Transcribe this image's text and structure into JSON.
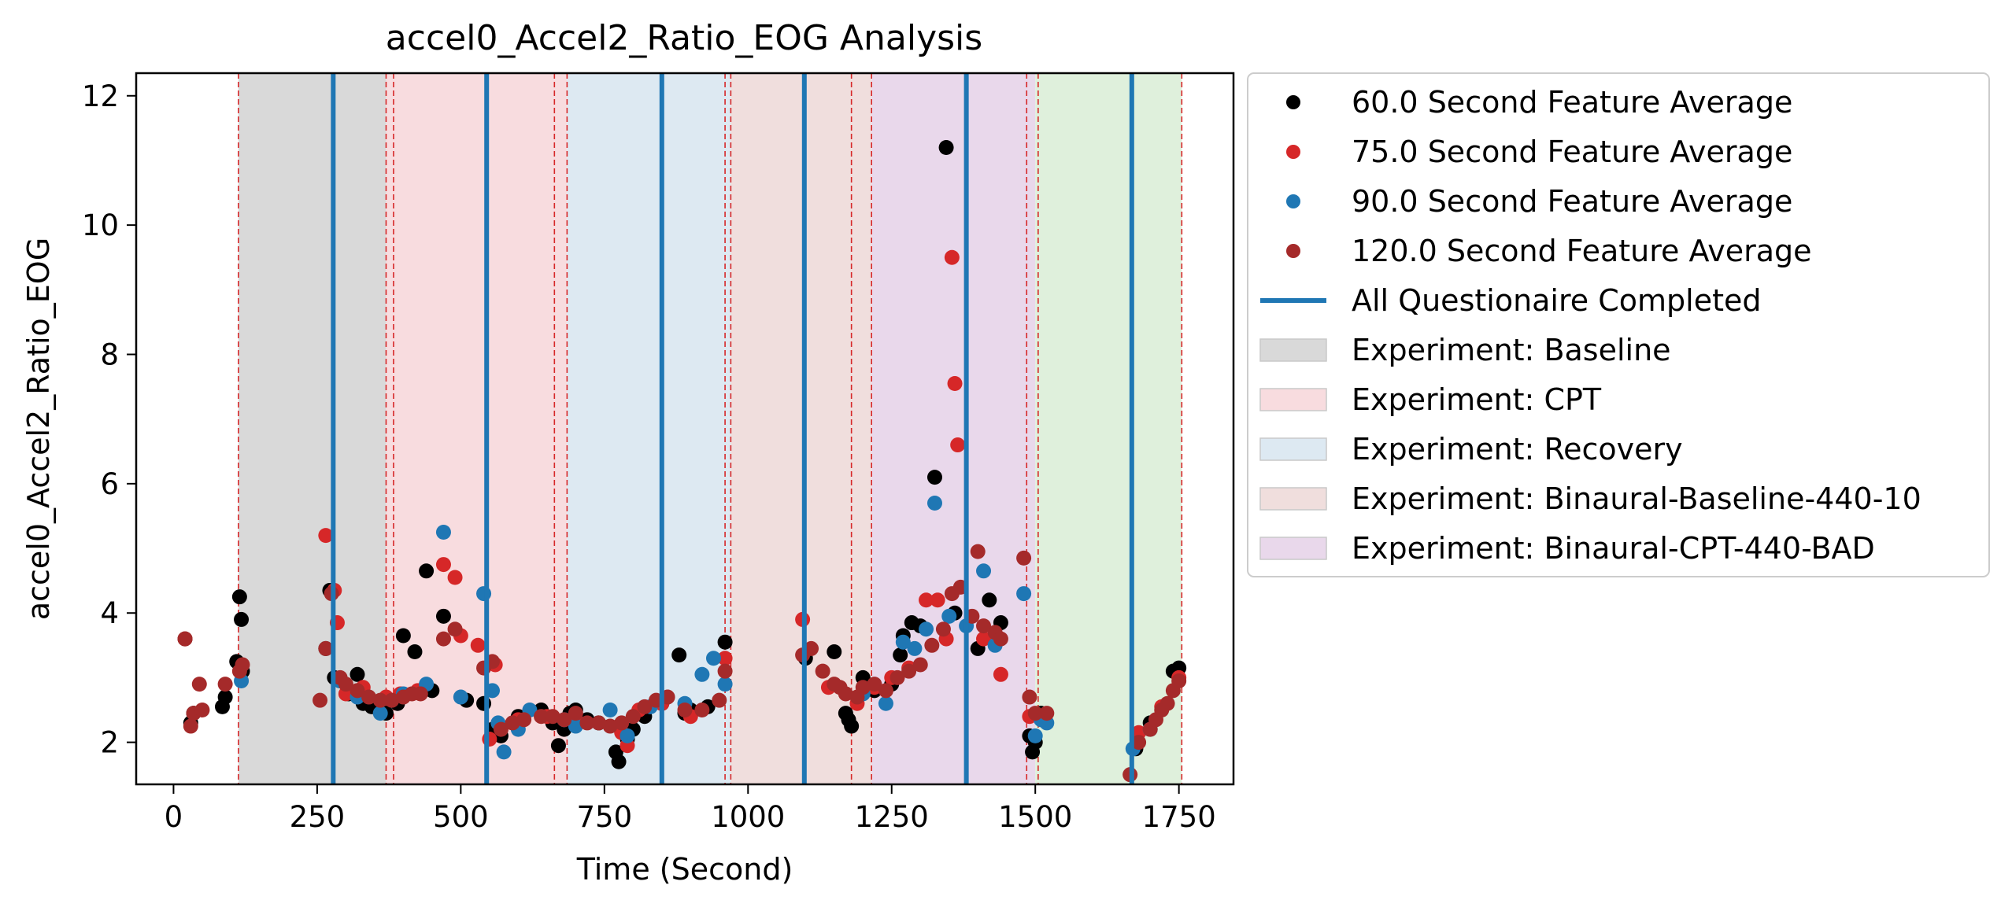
{
  "chart_data": {
    "type": "scatter",
    "title": "accel0_Accel2_Ratio_EOG Analysis",
    "xlabel": "Time (Second)",
    "ylabel": "accel0_Accel2_Ratio_EOG",
    "xlim": [
      -65,
      1845
    ],
    "ylim": [
      1.35,
      12.35
    ],
    "xticks": [
      0,
      250,
      500,
      750,
      1000,
      1250,
      1500,
      1750
    ],
    "yticks": [
      2,
      4,
      6,
      8,
      10,
      12
    ],
    "grid": false,
    "legend_position": "outside-right",
    "phases": [
      {
        "label": "Experiment: Baseline",
        "start": 113,
        "end": 370,
        "color": "#d9d9d9"
      },
      {
        "label": "Experiment: CPT",
        "start": 370,
        "end": 685,
        "color": "#f8dcdf"
      },
      {
        "label": "Experiment: Recovery",
        "start": 685,
        "end": 970,
        "color": "#dde9f2"
      },
      {
        "label": "Experiment: Binaural-Baseline-440-10",
        "start": 970,
        "end": 1215,
        "color": "#f0dedd"
      },
      {
        "label": "Experiment: Binaural-CPT-440-BAD",
        "start": 1215,
        "end": 1500,
        "color": "#e9d8eb"
      },
      {
        "label": "",
        "start": 1500,
        "end": 1755,
        "color": "#dff0dc"
      }
    ],
    "red_dashed_lines": [
      113,
      370,
      383,
      663,
      685,
      960,
      970,
      1180,
      1215,
      1485,
      1505,
      1755
    ],
    "questionnaire_completed": [
      278,
      545,
      850,
      1098,
      1380,
      1668
    ],
    "series": [
      {
        "name": "60.0 Second Feature Average",
        "color": "#000000",
        "points": [
          [
            20,
            3.6
          ],
          [
            30,
            2.3
          ],
          [
            35,
            2.45
          ],
          [
            85,
            2.55
          ],
          [
            90,
            2.7
          ],
          [
            110,
            3.25
          ],
          [
            115,
            4.25
          ],
          [
            118,
            3.9
          ],
          [
            120,
            3.1
          ],
          [
            265,
            3.45
          ],
          [
            272,
            4.35
          ],
          [
            280,
            3.0
          ],
          [
            290,
            2.95
          ],
          [
            305,
            2.75
          ],
          [
            320,
            3.05
          ],
          [
            330,
            2.6
          ],
          [
            345,
            2.55
          ],
          [
            370,
            2.45
          ],
          [
            390,
            2.6
          ],
          [
            400,
            3.65
          ],
          [
            420,
            3.4
          ],
          [
            440,
            4.65
          ],
          [
            450,
            2.8
          ],
          [
            470,
            3.95
          ],
          [
            510,
            2.65
          ],
          [
            540,
            2.6
          ],
          [
            555,
            2.2
          ],
          [
            570,
            2.1
          ],
          [
            600,
            2.4
          ],
          [
            640,
            2.5
          ],
          [
            660,
            2.3
          ],
          [
            670,
            1.95
          ],
          [
            680,
            2.2
          ],
          [
            690,
            2.45
          ],
          [
            700,
            2.5
          ],
          [
            720,
            2.35
          ],
          [
            740,
            2.3
          ],
          [
            770,
            1.85
          ],
          [
            775,
            1.7
          ],
          [
            790,
            2.05
          ],
          [
            800,
            2.2
          ],
          [
            820,
            2.4
          ],
          [
            850,
            2.6
          ],
          [
            880,
            3.35
          ],
          [
            890,
            2.45
          ],
          [
            900,
            2.5
          ],
          [
            930,
            2.55
          ],
          [
            960,
            3.55
          ],
          [
            1100,
            3.3
          ],
          [
            1150,
            3.4
          ],
          [
            1170,
            2.45
          ],
          [
            1175,
            2.35
          ],
          [
            1180,
            2.25
          ],
          [
            1200,
            3.0
          ],
          [
            1220,
            2.8
          ],
          [
            1250,
            2.9
          ],
          [
            1265,
            3.35
          ],
          [
            1270,
            3.65
          ],
          [
            1285,
            3.85
          ],
          [
            1300,
            3.8
          ],
          [
            1325,
            6.1
          ],
          [
            1345,
            11.2
          ],
          [
            1360,
            4.0
          ],
          [
            1400,
            3.45
          ],
          [
            1420,
            4.2
          ],
          [
            1440,
            3.85
          ],
          [
            1490,
            2.1
          ],
          [
            1495,
            1.85
          ],
          [
            1500,
            2.0
          ],
          [
            1510,
            2.45
          ],
          [
            1675,
            1.9
          ],
          [
            1700,
            2.3
          ],
          [
            1740,
            3.1
          ],
          [
            1750,
            3.15
          ]
        ]
      },
      {
        "name": "75.0 Second Feature Average",
        "color": "#d62728",
        "points": [
          [
            20,
            3.6
          ],
          [
            265,
            5.2
          ],
          [
            280,
            4.35
          ],
          [
            285,
            3.85
          ],
          [
            300,
            2.75
          ],
          [
            330,
            2.85
          ],
          [
            370,
            2.7
          ],
          [
            395,
            2.75
          ],
          [
            425,
            2.8
          ],
          [
            470,
            4.75
          ],
          [
            490,
            4.55
          ],
          [
            500,
            3.65
          ],
          [
            530,
            3.5
          ],
          [
            550,
            2.05
          ],
          [
            560,
            3.2
          ],
          [
            600,
            2.35
          ],
          [
            650,
            2.4
          ],
          [
            700,
            2.35
          ],
          [
            780,
            2.15
          ],
          [
            790,
            1.95
          ],
          [
            810,
            2.5
          ],
          [
            850,
            2.6
          ],
          [
            900,
            2.4
          ],
          [
            960,
            3.3
          ],
          [
            1095,
            3.9
          ],
          [
            1140,
            2.85
          ],
          [
            1190,
            2.6
          ],
          [
            1220,
            2.85
          ],
          [
            1250,
            3.0
          ],
          [
            1280,
            3.15
          ],
          [
            1310,
            4.2
          ],
          [
            1330,
            4.2
          ],
          [
            1345,
            3.6
          ],
          [
            1355,
            9.5
          ],
          [
            1360,
            7.55
          ],
          [
            1365,
            6.6
          ],
          [
            1410,
            3.6
          ],
          [
            1440,
            3.05
          ],
          [
            1490,
            2.4
          ],
          [
            1680,
            2.15
          ],
          [
            1720,
            2.55
          ],
          [
            1750,
            3.0
          ]
        ]
      },
      {
        "name": "90.0 Second Feature Average",
        "color": "#1f77b4",
        "points": [
          [
            118,
            2.95
          ],
          [
            290,
            2.95
          ],
          [
            320,
            2.7
          ],
          [
            360,
            2.45
          ],
          [
            400,
            2.75
          ],
          [
            440,
            2.9
          ],
          [
            470,
            5.25
          ],
          [
            500,
            2.7
          ],
          [
            540,
            4.3
          ],
          [
            555,
            2.8
          ],
          [
            565,
            2.3
          ],
          [
            575,
            1.85
          ],
          [
            600,
            2.2
          ],
          [
            620,
            2.5
          ],
          [
            680,
            2.35
          ],
          [
            700,
            2.25
          ],
          [
            760,
            2.5
          ],
          [
            790,
            2.1
          ],
          [
            830,
            2.55
          ],
          [
            890,
            2.6
          ],
          [
            920,
            3.05
          ],
          [
            940,
            3.3
          ],
          [
            960,
            2.9
          ],
          [
            1200,
            2.75
          ],
          [
            1240,
            2.6
          ],
          [
            1270,
            3.55
          ],
          [
            1290,
            3.45
          ],
          [
            1310,
            3.75
          ],
          [
            1325,
            5.7
          ],
          [
            1350,
            3.95
          ],
          [
            1380,
            3.8
          ],
          [
            1410,
            4.65
          ],
          [
            1430,
            3.5
          ],
          [
            1480,
            4.3
          ],
          [
            1500,
            2.1
          ],
          [
            1510,
            2.35
          ],
          [
            1520,
            2.3
          ],
          [
            1670,
            1.9
          ],
          [
            1700,
            2.2
          ]
        ]
      },
      {
        "name": "120.0 Second Feature Average",
        "color": "#a52a2a",
        "points": [
          [
            20,
            3.6
          ],
          [
            30,
            2.25
          ],
          [
            35,
            2.45
          ],
          [
            45,
            2.9
          ],
          [
            50,
            2.5
          ],
          [
            90,
            2.9
          ],
          [
            115,
            3.1
          ],
          [
            120,
            3.2
          ],
          [
            255,
            2.65
          ],
          [
            265,
            3.45
          ],
          [
            275,
            4.3
          ],
          [
            290,
            3.0
          ],
          [
            300,
            2.9
          ],
          [
            320,
            2.8
          ],
          [
            340,
            2.7
          ],
          [
            360,
            2.65
          ],
          [
            380,
            2.65
          ],
          [
            400,
            2.7
          ],
          [
            415,
            2.75
          ],
          [
            430,
            2.75
          ],
          [
            470,
            3.6
          ],
          [
            490,
            3.75
          ],
          [
            540,
            3.15
          ],
          [
            555,
            3.25
          ],
          [
            570,
            2.2
          ],
          [
            590,
            2.3
          ],
          [
            610,
            2.35
          ],
          [
            640,
            2.4
          ],
          [
            660,
            2.4
          ],
          [
            680,
            2.35
          ],
          [
            700,
            2.45
          ],
          [
            720,
            2.3
          ],
          [
            740,
            2.3
          ],
          [
            760,
            2.25
          ],
          [
            780,
            2.3
          ],
          [
            800,
            2.4
          ],
          [
            820,
            2.55
          ],
          [
            840,
            2.65
          ],
          [
            860,
            2.7
          ],
          [
            890,
            2.5
          ],
          [
            920,
            2.5
          ],
          [
            950,
            2.65
          ],
          [
            960,
            3.1
          ],
          [
            1095,
            3.35
          ],
          [
            1110,
            3.45
          ],
          [
            1130,
            3.1
          ],
          [
            1150,
            2.9
          ],
          [
            1160,
            2.85
          ],
          [
            1170,
            2.75
          ],
          [
            1190,
            2.7
          ],
          [
            1200,
            2.85
          ],
          [
            1220,
            2.9
          ],
          [
            1240,
            2.8
          ],
          [
            1260,
            3.0
          ],
          [
            1280,
            3.1
          ],
          [
            1300,
            3.2
          ],
          [
            1320,
            3.5
          ],
          [
            1340,
            3.75
          ],
          [
            1355,
            4.3
          ],
          [
            1370,
            4.4
          ],
          [
            1390,
            3.95
          ],
          [
            1400,
            4.95
          ],
          [
            1410,
            3.8
          ],
          [
            1430,
            3.7
          ],
          [
            1440,
            3.6
          ],
          [
            1480,
            4.85
          ],
          [
            1490,
            2.7
          ],
          [
            1500,
            2.45
          ],
          [
            1520,
            2.45
          ],
          [
            1665,
            1.5
          ],
          [
            1680,
            2.0
          ],
          [
            1700,
            2.2
          ],
          [
            1710,
            2.35
          ],
          [
            1720,
            2.5
          ],
          [
            1730,
            2.6
          ],
          [
            1740,
            2.8
          ],
          [
            1750,
            2.95
          ]
        ]
      }
    ],
    "legend": [
      {
        "label": "60.0 Second Feature Average",
        "kind": "marker",
        "color": "#000000"
      },
      {
        "label": "75.0 Second Feature Average",
        "kind": "marker",
        "color": "#d62728"
      },
      {
        "label": "90.0 Second Feature Average",
        "kind": "marker",
        "color": "#1f77b4"
      },
      {
        "label": "120.0 Second Feature Average",
        "kind": "marker",
        "color": "#a52a2a"
      },
      {
        "label": "All Questionaire Completed",
        "kind": "line",
        "color": "#1f77b4"
      },
      {
        "label": "Experiment: Baseline",
        "kind": "patch",
        "color": "#d9d9d9"
      },
      {
        "label": "Experiment: CPT",
        "kind": "patch",
        "color": "#f8dcdf"
      },
      {
        "label": "Experiment: Recovery",
        "kind": "patch",
        "color": "#dde9f2"
      },
      {
        "label": "Experiment: Binaural-Baseline-440-10",
        "kind": "patch",
        "color": "#f0dedd"
      },
      {
        "label": "Experiment: Binaural-CPT-440-BAD",
        "kind": "patch",
        "color": "#e9d8eb"
      }
    ]
  }
}
